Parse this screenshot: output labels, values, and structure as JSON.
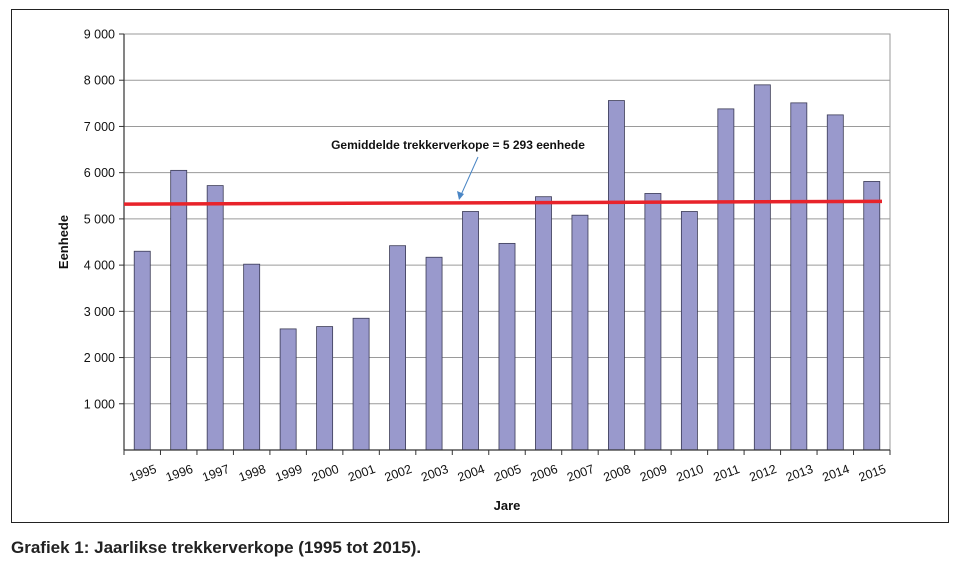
{
  "chart_data": {
    "type": "bar",
    "categories": [
      "1995",
      "1996",
      "1997",
      "1998",
      "1999",
      "2000",
      "2001",
      "2002",
      "2003",
      "2004",
      "2005",
      "2006",
      "2007",
      "2008",
      "2009",
      "2010",
      "2011",
      "2012",
      "2013",
      "2014",
      "2015"
    ],
    "values": [
      4300,
      6050,
      5720,
      4020,
      2620,
      2670,
      2850,
      4420,
      4170,
      5160,
      4470,
      5480,
      5080,
      7560,
      5550,
      5160,
      7380,
      7900,
      7510,
      7250,
      5810
    ],
    "title": "",
    "xlabel": "Jare",
    "ylabel": "Eenhede",
    "ylim": [
      0,
      9000
    ],
    "yticks": [
      1000,
      2000,
      3000,
      4000,
      5000,
      6000,
      7000,
      8000,
      9000
    ],
    "ytick_labels": [
      "1 000",
      "2 000",
      "3 000",
      "4 000",
      "5 000",
      "6 000",
      "7 000",
      "8 000",
      "9 000"
    ],
    "grid": true,
    "bar_color": "#9999cc",
    "average_line": {
      "y_start": 5320,
      "y_end": 5380,
      "color": "#e8232a"
    },
    "annotation": "Gemiddelde trekkerverkope = 5 293 eenhede"
  },
  "caption": "Grafiek 1: Jaarlikse trekkerverkope (1995 tot 2015)."
}
